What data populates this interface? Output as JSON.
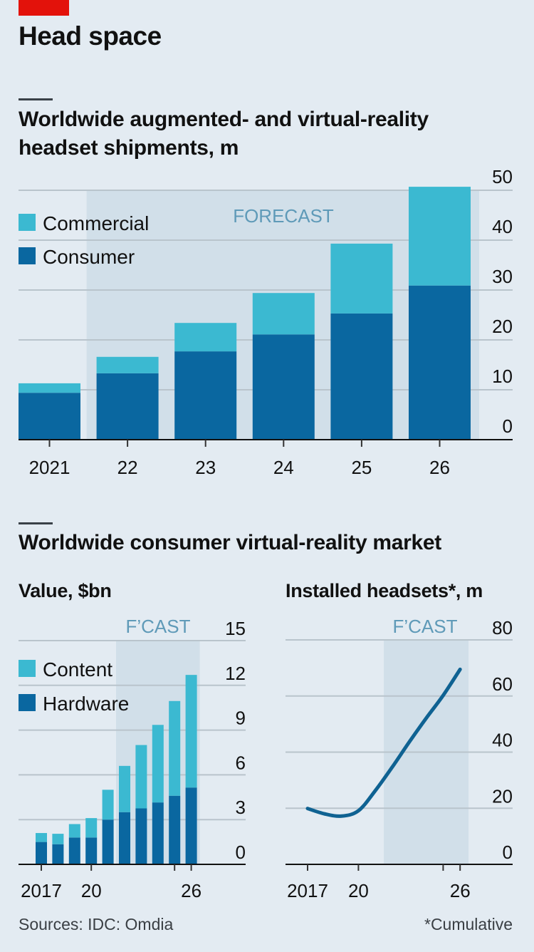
{
  "headline": "Head space",
  "colors": {
    "background": "#e3ebf2",
    "forecast_shade": "#d1dfe9",
    "gridline": "#b9c4cc",
    "axis": "#111111",
    "commercial": "#3bb9d1",
    "consumer": "#0a67a0",
    "content": "#3bb9d1",
    "hardware": "#0a67a0",
    "line": "#0f6292",
    "forecast_label": "#5f9ab8",
    "brand_red": "#e3120b"
  },
  "chart1": {
    "title_line1": "Worldwide augmented- and virtual-reality",
    "title_line2": "headset shipments, m",
    "forecast_label": "FORECAST"
  },
  "section2": {
    "title": "Worldwide consumer virtual-reality market",
    "left_title": "Value, $bn",
    "right_title": "Installed headsets*, m",
    "forecast_label": "F’CAST"
  },
  "footer": {
    "sources": "Sources: IDC: Omdia",
    "note": "*Cumulative"
  },
  "chart_data": [
    {
      "id": "shipments",
      "type": "bar",
      "stacked": true,
      "title": "Worldwide augmented- and virtual-reality headset shipments, m",
      "xlabel": "",
      "ylabel": "",
      "categories": [
        "2021",
        "22",
        "23",
        "24",
        "25",
        "26"
      ],
      "series": [
        {
          "name": "Consumer",
          "values": [
            9.4,
            13.3,
            17.7,
            21.1,
            25.3,
            30.9
          ]
        },
        {
          "name": "Commercial",
          "values": [
            1.9,
            3.3,
            5.7,
            8.3,
            14.0,
            19.8
          ]
        }
      ],
      "ylim": [
        0,
        50
      ],
      "yticks": [
        0,
        10,
        20,
        30,
        40,
        50
      ],
      "y_axis_side": "right",
      "grid": true,
      "legend": {
        "position": "top-left",
        "entries": [
          "Commercial",
          "Consumer"
        ]
      },
      "forecast": {
        "label": "FORECAST",
        "from_index": 1,
        "to_index": 5
      }
    },
    {
      "id": "value",
      "type": "bar",
      "stacked": true,
      "title": "Value, $bn",
      "categories": [
        "2017",
        "2018",
        "2019",
        "2020",
        "2021",
        "2022",
        "2023",
        "2024",
        "2025",
        "2026"
      ],
      "tick_labels": [
        {
          "index": 0,
          "label": "2017"
        },
        {
          "index": 3,
          "label": "20"
        },
        {
          "index": 8,
          "label": ""
        },
        {
          "index": 9,
          "label": "26"
        }
      ],
      "series": [
        {
          "name": "Hardware",
          "values": [
            1.5,
            1.35,
            1.8,
            1.8,
            3.0,
            3.5,
            3.75,
            4.15,
            4.6,
            5.15
          ]
        },
        {
          "name": "Content",
          "values": [
            0.6,
            0.7,
            0.9,
            1.3,
            2.0,
            3.1,
            4.25,
            5.2,
            6.35,
            7.55
          ]
        }
      ],
      "ylim": [
        0,
        15
      ],
      "yticks": [
        0,
        3,
        6,
        9,
        12,
        15
      ],
      "y_axis_side": "right",
      "grid": true,
      "legend": {
        "position": "top-left",
        "entries": [
          "Content",
          "Hardware"
        ]
      },
      "forecast": {
        "label": "F’CAST",
        "from_index": 5,
        "to_index": 9
      }
    },
    {
      "id": "installed",
      "type": "line",
      "title": "Installed headsets*, m",
      "x": [
        2017,
        2018,
        2019,
        2020,
        2021,
        2022,
        2023,
        2024,
        2025,
        2026
      ],
      "tick_labels": [
        {
          "x": 2017,
          "label": "2017"
        },
        {
          "x": 2020,
          "label": "20"
        },
        {
          "x": 2025,
          "label": ""
        },
        {
          "x": 2026,
          "label": "26"
        }
      ],
      "series": [
        {
          "name": "Installed headsets",
          "values": [
            19.9,
            18.0,
            17.2,
            19.1,
            26.3,
            34.7,
            43.6,
            52.1,
            60.2,
            69.5
          ]
        }
      ],
      "ylim": [
        0,
        80
      ],
      "yticks": [
        0,
        20,
        40,
        60,
        80
      ],
      "y_axis_side": "right",
      "grid": true,
      "forecast": {
        "label": "F’CAST",
        "from_x": 2021.5,
        "to_x": 2026.5
      }
    }
  ]
}
